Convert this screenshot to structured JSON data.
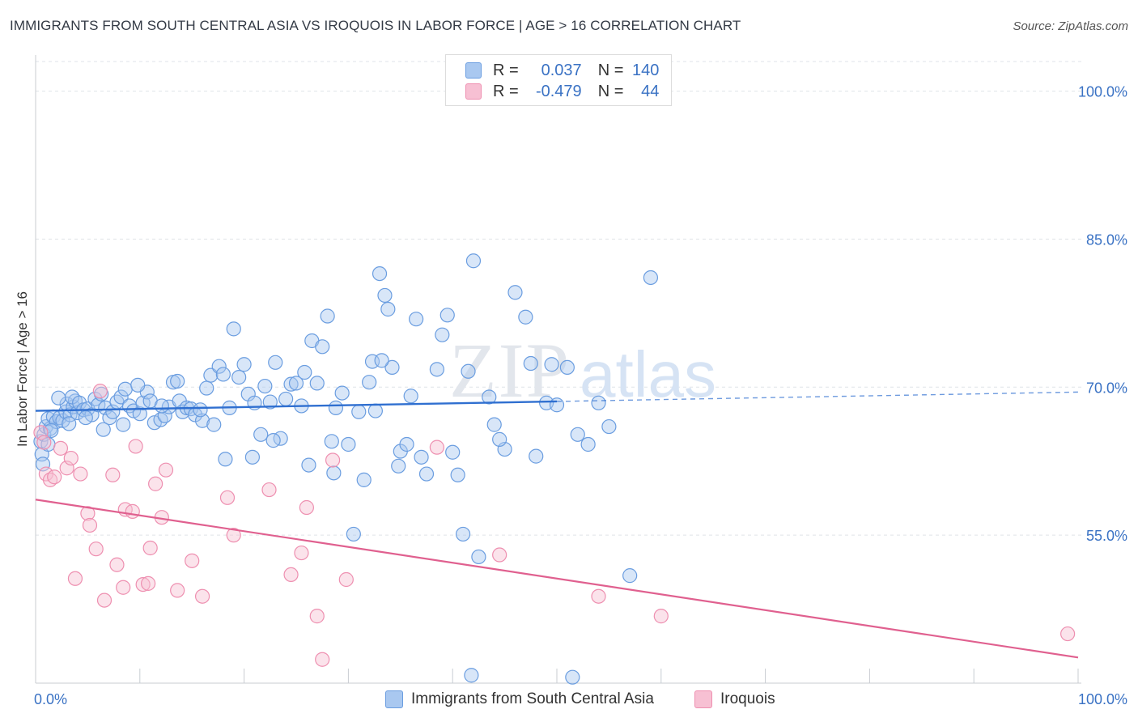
{
  "header": {
    "title": "IMMIGRANTS FROM SOUTH CENTRAL ASIA VS IROQUOIS IN LABOR FORCE | AGE > 16 CORRELATION CHART",
    "source": "Source: ZipAtlas.com"
  },
  "watermark": {
    "text_zip": "ZIP",
    "text_atlas": "atlas"
  },
  "legend": {
    "rows": [
      {
        "r_label": "R = ",
        "r_value": "0.037",
        "n_label": "N = ",
        "n_value": "140"
      },
      {
        "r_label": "R = ",
        "r_value": "-0.479",
        "n_label": "N = ",
        "n_value": "44"
      }
    ]
  },
  "chart_data": {
    "type": "scatter",
    "title": "IMMIGRANTS FROM SOUTH CENTRAL ASIA VS IROQUOIS IN LABOR FORCE | AGE > 16 CORRELATION CHART",
    "xlabel": "",
    "ylabel": "In Labor Force | Age > 16",
    "xlim": [
      0,
      100
    ],
    "ylim": [
      40,
      103
    ],
    "x_tick_labels": [
      "0.0%",
      "100.0%"
    ],
    "y_ticks": [
      55,
      70,
      85,
      100
    ],
    "y_tick_labels": [
      "55.0%",
      "70.0%",
      "85.0%",
      "100.0%"
    ],
    "grid": true,
    "legend_position": "top-center",
    "colors": {
      "series1_fill": "#a9c8f0",
      "series1_stroke": "#6a9de0",
      "series1_line": "#2f6fd0",
      "series2_fill": "#f7c0d3",
      "series2_stroke": "#ee8fb0",
      "series2_line": "#e0608f",
      "tick_text": "#3a72c4"
    },
    "series": [
      {
        "name": "Immigrants from South Central Asia",
        "trend": {
          "x0": 0,
          "y0": 67.6,
          "x1": 100,
          "y1": 69.5,
          "solid_until": 50
        },
        "points": [
          [
            0.5,
            64.5
          ],
          [
            0.6,
            63.2
          ],
          [
            0.7,
            62.2
          ],
          [
            0.8,
            65.2
          ],
          [
            1.0,
            66.0
          ],
          [
            1.2,
            64.2
          ],
          [
            1.4,
            65.8
          ],
          [
            1.2,
            66.8
          ],
          [
            1.7,
            67.0
          ],
          [
            2.0,
            66.5
          ],
          [
            2.3,
            66.9
          ],
          [
            2.6,
            66.6
          ],
          [
            2.9,
            67.5
          ],
          [
            3.0,
            68.3
          ],
          [
            3.3,
            67.2
          ],
          [
            3.6,
            68.0
          ],
          [
            3.8,
            68.6
          ],
          [
            3.5,
            69.0
          ],
          [
            4.0,
            67.4
          ],
          [
            4.2,
            68.4
          ],
          [
            4.6,
            67.7
          ],
          [
            5.0,
            67.8
          ],
          [
            5.4,
            67.2
          ],
          [
            5.7,
            68.8
          ],
          [
            6.0,
            68.2
          ],
          [
            6.3,
            69.3
          ],
          [
            6.7,
            67.9
          ],
          [
            7.1,
            66.9
          ],
          [
            7.4,
            67.5
          ],
          [
            7.8,
            68.5
          ],
          [
            8.2,
            69.0
          ],
          [
            8.6,
            69.8
          ],
          [
            9.0,
            68.1
          ],
          [
            9.4,
            67.6
          ],
          [
            10.0,
            67.3
          ],
          [
            10.3,
            68.4
          ],
          [
            10.7,
            69.5
          ],
          [
            11.0,
            68.6
          ],
          [
            11.4,
            66.4
          ],
          [
            12.0,
            66.7
          ],
          [
            12.4,
            67.1
          ],
          [
            12.8,
            68.0
          ],
          [
            13.2,
            70.5
          ],
          [
            13.6,
            70.6
          ],
          [
            13.8,
            68.6
          ],
          [
            14.1,
            67.5
          ],
          [
            14.5,
            67.9
          ],
          [
            14.9,
            67.8
          ],
          [
            15.3,
            67.2
          ],
          [
            16.0,
            66.6
          ],
          [
            16.4,
            69.9
          ],
          [
            16.8,
            71.2
          ],
          [
            17.1,
            66.2
          ],
          [
            17.6,
            72.1
          ],
          [
            18.0,
            71.3
          ],
          [
            18.6,
            67.9
          ],
          [
            19.0,
            75.9
          ],
          [
            19.5,
            71.0
          ],
          [
            20.0,
            72.3
          ],
          [
            20.4,
            69.3
          ],
          [
            21.0,
            68.4
          ],
          [
            21.6,
            65.2
          ],
          [
            22.0,
            70.1
          ],
          [
            22.5,
            68.5
          ],
          [
            23.0,
            72.5
          ],
          [
            23.5,
            64.8
          ],
          [
            24.0,
            68.8
          ],
          [
            24.5,
            70.3
          ],
          [
            25.0,
            70.4
          ],
          [
            25.5,
            68.1
          ],
          [
            25.8,
            71.5
          ],
          [
            26.5,
            74.7
          ],
          [
            27.0,
            70.4
          ],
          [
            27.5,
            74.1
          ],
          [
            28.0,
            77.2
          ],
          [
            28.4,
            64.5
          ],
          [
            28.8,
            67.9
          ],
          [
            29.4,
            69.4
          ],
          [
            30.0,
            64.2
          ],
          [
            31.0,
            67.5
          ],
          [
            31.5,
            60.6
          ],
          [
            32.0,
            70.5
          ],
          [
            32.3,
            72.6
          ],
          [
            32.6,
            67.6
          ],
          [
            33.0,
            81.5
          ],
          [
            33.5,
            79.3
          ],
          [
            33.8,
            77.9
          ],
          [
            34.2,
            72.0
          ],
          [
            35.0,
            63.5
          ],
          [
            35.6,
            64.2
          ],
          [
            36.0,
            69.1
          ],
          [
            36.5,
            76.9
          ],
          [
            37.5,
            61.2
          ],
          [
            38.5,
            71.8
          ],
          [
            39.0,
            75.3
          ],
          [
            39.5,
            77.3
          ],
          [
            40.5,
            61.1
          ],
          [
            41.0,
            55.1
          ],
          [
            41.5,
            71.6
          ],
          [
            42.0,
            82.8
          ],
          [
            42.5,
            52.8
          ],
          [
            43.5,
            69.0
          ],
          [
            44.0,
            66.2
          ],
          [
            45.0,
            63.7
          ],
          [
            46.0,
            79.6
          ],
          [
            47.0,
            77.1
          ],
          [
            47.5,
            72.4
          ],
          [
            48.0,
            63.0
          ],
          [
            49.0,
            68.4
          ],
          [
            49.5,
            72.3
          ],
          [
            50.0,
            68.2
          ],
          [
            51.0,
            72.0
          ],
          [
            52.0,
            65.2
          ],
          [
            53.0,
            64.2
          ],
          [
            54.0,
            68.4
          ],
          [
            55.0,
            66.0
          ],
          [
            57.0,
            50.9
          ],
          [
            59.0,
            81.1
          ],
          [
            41.8,
            40.8
          ],
          [
            51.5,
            40.6
          ],
          [
            1.5,
            65.6
          ],
          [
            2.2,
            68.9
          ],
          [
            3.2,
            66.3
          ],
          [
            4.8,
            66.9
          ],
          [
            6.5,
            65.7
          ],
          [
            8.4,
            66.2
          ],
          [
            9.8,
            70.2
          ],
          [
            12.1,
            68.1
          ],
          [
            15.8,
            67.7
          ],
          [
            18.2,
            62.7
          ],
          [
            20.8,
            62.9
          ],
          [
            22.8,
            64.6
          ],
          [
            26.2,
            62.1
          ],
          [
            28.6,
            61.3
          ],
          [
            30.5,
            55.1
          ],
          [
            33.2,
            72.7
          ],
          [
            34.8,
            62.0
          ],
          [
            37.0,
            62.9
          ],
          [
            40.0,
            63.4
          ],
          [
            44.5,
            64.7
          ]
        ]
      },
      {
        "name": "Iroquois",
        "trend": {
          "x0": 0,
          "y0": 58.6,
          "x1": 100,
          "y1": 42.6
        },
        "points": [
          [
            0.5,
            65.4
          ],
          [
            0.8,
            64.4
          ],
          [
            1.0,
            61.2
          ],
          [
            1.4,
            60.6
          ],
          [
            1.8,
            60.9
          ],
          [
            2.4,
            63.8
          ],
          [
            3.0,
            61.8
          ],
          [
            3.4,
            62.8
          ],
          [
            3.8,
            50.6
          ],
          [
            4.3,
            61.2
          ],
          [
            5.0,
            57.2
          ],
          [
            5.2,
            56.0
          ],
          [
            5.8,
            53.6
          ],
          [
            6.2,
            69.6
          ],
          [
            6.6,
            48.4
          ],
          [
            7.4,
            61.1
          ],
          [
            7.8,
            52.0
          ],
          [
            8.4,
            49.7
          ],
          [
            8.6,
            57.6
          ],
          [
            9.3,
            57.4
          ],
          [
            9.6,
            64.0
          ],
          [
            10.3,
            50.0
          ],
          [
            10.8,
            50.1
          ],
          [
            11.0,
            53.7
          ],
          [
            11.5,
            60.2
          ],
          [
            12.1,
            56.8
          ],
          [
            12.5,
            61.6
          ],
          [
            13.6,
            49.4
          ],
          [
            15.0,
            52.4
          ],
          [
            16.0,
            48.8
          ],
          [
            18.4,
            58.8
          ],
          [
            19.0,
            55.0
          ],
          [
            22.4,
            59.6
          ],
          [
            24.5,
            51.0
          ],
          [
            25.5,
            53.2
          ],
          [
            26.0,
            57.8
          ],
          [
            27.0,
            46.8
          ],
          [
            27.5,
            42.4
          ],
          [
            28.5,
            62.6
          ],
          [
            29.8,
            50.5
          ],
          [
            38.5,
            63.9
          ],
          [
            44.5,
            53.0
          ],
          [
            54.0,
            48.8
          ],
          [
            60.0,
            46.8
          ]
        ],
        "extra_points": [
          [
            99.0,
            45.0
          ]
        ]
      }
    ]
  },
  "bottom_legend": {
    "series1": "Immigrants from South Central Asia",
    "series2": "Iroquois"
  }
}
